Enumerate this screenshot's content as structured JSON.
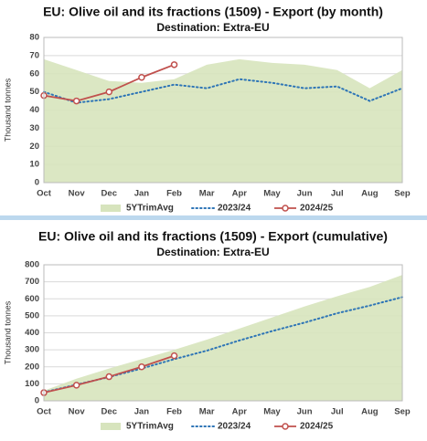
{
  "chart_data": [
    {
      "type": "line",
      "title": "EU: Olive oil and its fractions (1509) - Export  (by month)",
      "subtitle": "Destination: Extra-EU",
      "y_label": "Thousand  tonnes",
      "categories": [
        "Oct",
        "Nov",
        "Dec",
        "Jan",
        "Feb",
        "Mar",
        "Apr",
        "May",
        "Jun",
        "Jul",
        "Aug",
        "Sep"
      ],
      "ylim": [
        0,
        80
      ],
      "yticks": [
        0,
        10,
        20,
        30,
        40,
        50,
        60,
        70,
        80
      ],
      "grid": true,
      "series": [
        {
          "name": "5YTrimAvg",
          "kind": "area",
          "color": "#d7e4bd",
          "values": [
            68,
            62,
            56,
            55,
            57,
            65,
            68,
            66,
            65,
            62,
            52,
            62
          ]
        },
        {
          "name": "2023/24",
          "kind": "dotted",
          "color": "#2e75b6",
          "values": [
            50,
            44,
            46,
            50,
            54,
            52,
            57,
            55,
            52,
            53,
            45,
            52
          ]
        },
        {
          "name": "2024/25",
          "kind": "markers",
          "color": "#c0504d",
          "values": [
            48,
            45,
            50,
            58,
            65,
            null,
            null,
            null,
            null,
            null,
            null,
            null
          ]
        }
      ]
    },
    {
      "type": "line",
      "title": "EU: Olive oil and its fractions (1509) - Export  (cumulative)",
      "subtitle": "Destination: Extra-EU",
      "y_label": "Thousand  tonnes",
      "categories": [
        "Oct",
        "Nov",
        "Dec",
        "Jan",
        "Feb",
        "Mar",
        "Apr",
        "May",
        "Jun",
        "Jul",
        "Aug",
        "Sep"
      ],
      "ylim": [
        0,
        800
      ],
      "yticks": [
        0,
        100,
        200,
        300,
        400,
        500,
        600,
        700,
        800
      ],
      "grid": true,
      "series": [
        {
          "name": "5YTrimAvg",
          "kind": "area",
          "color": "#d7e4bd",
          "values": [
            60,
            130,
            190,
            245,
            300,
            360,
            425,
            490,
            555,
            615,
            670,
            740
          ]
        },
        {
          "name": "2023/24",
          "kind": "dotted",
          "color": "#2e75b6",
          "values": [
            50,
            95,
            140,
            190,
            245,
            295,
            355,
            410,
            460,
            515,
            560,
            610
          ]
        },
        {
          "name": "2024/25",
          "kind": "markers",
          "color": "#c0504d",
          "values": [
            48,
            92,
            142,
            200,
            265,
            null,
            null,
            null,
            null,
            null,
            null,
            null
          ]
        }
      ]
    }
  ]
}
